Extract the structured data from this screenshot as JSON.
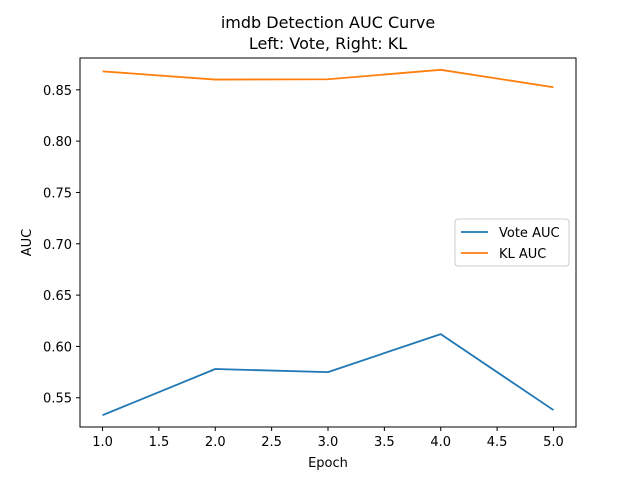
{
  "chart_data": {
    "type": "line",
    "title_lines": [
      "imdb Detection AUC Curve",
      "Left: Vote, Right: KL"
    ],
    "xlabel": "Epoch",
    "ylabel": "AUC",
    "xlim": [
      0.8,
      5.2
    ],
    "ylim": [
      0.5215,
      0.881
    ],
    "x_ticks": [
      1.0,
      1.5,
      2.0,
      2.5,
      3.0,
      3.5,
      4.0,
      4.5,
      5.0
    ],
    "x_tick_labels": [
      "1.0",
      "1.5",
      "2.0",
      "2.5",
      "3.0",
      "3.5",
      "4.0",
      "4.5",
      "5.0"
    ],
    "y_ticks": [
      0.55,
      0.6,
      0.65,
      0.7,
      0.75,
      0.8,
      0.85
    ],
    "y_tick_labels": [
      "0.55",
      "0.60",
      "0.65",
      "0.70",
      "0.75",
      "0.80",
      "0.85"
    ],
    "grid": false,
    "legend_position": "center-right",
    "x": [
      1,
      2,
      3,
      4,
      5
    ],
    "series": [
      {
        "name": "Vote AUC",
        "color": "#1f77b4",
        "values": [
          0.533,
          0.578,
          0.575,
          0.612,
          0.538
        ]
      },
      {
        "name": "KL AUC",
        "color": "#ff7f0e",
        "values": [
          0.868,
          0.86,
          0.8603,
          0.8695,
          0.8525
        ]
      }
    ]
  }
}
